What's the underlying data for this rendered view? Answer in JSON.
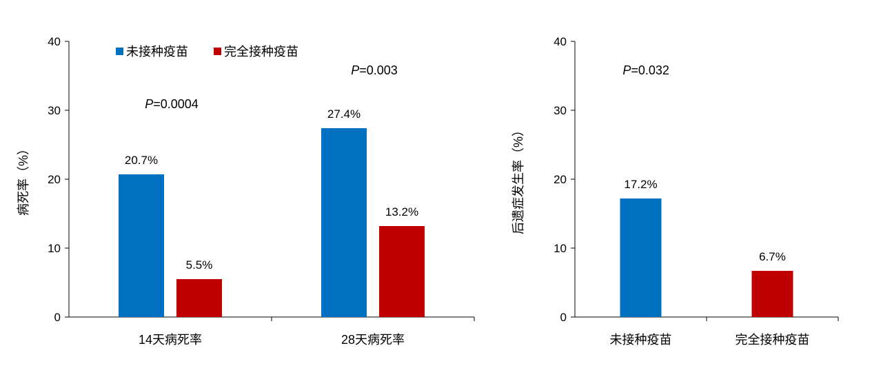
{
  "colors": {
    "unvaccinated": "#0070C0",
    "fully_vaccinated": "#C00000",
    "axis": "#000000"
  },
  "chart_data": [
    {
      "type": "bar",
      "ylabel": "病死率（%）",
      "ylim": [
        0,
        40
      ],
      "yticks": [
        0,
        10,
        20,
        30,
        40
      ],
      "categories": [
        "14天病死率",
        "28天病死率"
      ],
      "legend": "top-left",
      "series": [
        {
          "name": "未接种疫苗",
          "values": [
            20.7,
            27.4
          ],
          "labels": [
            "20.7%",
            "27.4%"
          ]
        },
        {
          "name": "完全接种疫苗",
          "values": [
            5.5,
            13.2
          ],
          "labels": [
            "5.5%",
            "13.2%"
          ]
        }
      ],
      "annotations": [
        {
          "category": "14天病死率",
          "p_symbol": "P",
          "p_text": "=0.0004",
          "y": 30.3
        },
        {
          "category": "28天病死率",
          "p_symbol": "P",
          "p_text": "=0.003",
          "y": 35.2
        }
      ]
    },
    {
      "type": "bar",
      "ylabel": "后遗症发生率（%）",
      "ylim": [
        0,
        40
      ],
      "yticks": [
        0,
        10,
        20,
        30,
        40
      ],
      "categories": [
        "未接种疫苗",
        "完全接种疫苗"
      ],
      "values": [
        17.2,
        6.7
      ],
      "labels": [
        "17.2%",
        "6.7%"
      ],
      "annotations": [
        {
          "p_symbol": "P",
          "p_text": "=0.032",
          "y": 35.2
        }
      ]
    }
  ]
}
